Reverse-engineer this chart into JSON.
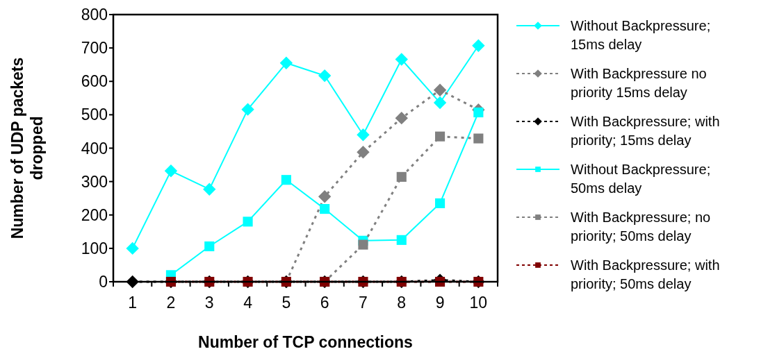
{
  "chart_data": {
    "type": "line",
    "xlabel": "Number of TCP connections",
    "ylabel": "Number of UDP packets dropped",
    "categories": [
      "1",
      "2",
      "3",
      "4",
      "5",
      "6",
      "7",
      "8",
      "9",
      "10"
    ],
    "ylim": [
      0,
      800
    ],
    "yticks": [
      0,
      100,
      200,
      300,
      400,
      500,
      600,
      700,
      800
    ],
    "grid": false,
    "legend": "right",
    "series": [
      {
        "name": "Without Backpressure; 15ms delay",
        "color": "#00ffff",
        "marker": "diamond",
        "line_style": "solid",
        "values": [
          100,
          332,
          277,
          516,
          655,
          617,
          440,
          666,
          536,
          707
        ]
      },
      {
        "name": "With Backpressure no priority 15ms delay",
        "color": "#808080",
        "marker": "diamond",
        "line_style": "dotted",
        "values": [
          null,
          null,
          null,
          null,
          0,
          255,
          388,
          490,
          574,
          515
        ]
      },
      {
        "name": "With Backpressure; with priority; 15ms delay",
        "color": "#000000",
        "marker": "diamond",
        "line_style": "dotted",
        "values": [
          0,
          0,
          0,
          0,
          0,
          0,
          0,
          0,
          5,
          0
        ]
      },
      {
        "name": "Without Backpressure; 50ms delay",
        "color": "#00ffff",
        "marker": "square",
        "line_style": "solid",
        "values": [
          null,
          20,
          106,
          180,
          305,
          218,
          123,
          125,
          235,
          507
        ]
      },
      {
        "name": "With Backpressure; no priority; 50ms delay",
        "color": "#808080",
        "marker": "square",
        "line_style": "dotted",
        "values": [
          null,
          null,
          null,
          null,
          null,
          0,
          111,
          314,
          435,
          429
        ]
      },
      {
        "name": "With Backpressure; with priority; 50ms delay",
        "color": "#800000",
        "marker": "square",
        "line_style": "dotted",
        "values": [
          null,
          0,
          0,
          0,
          0,
          0,
          0,
          0,
          0,
          0
        ]
      }
    ]
  }
}
